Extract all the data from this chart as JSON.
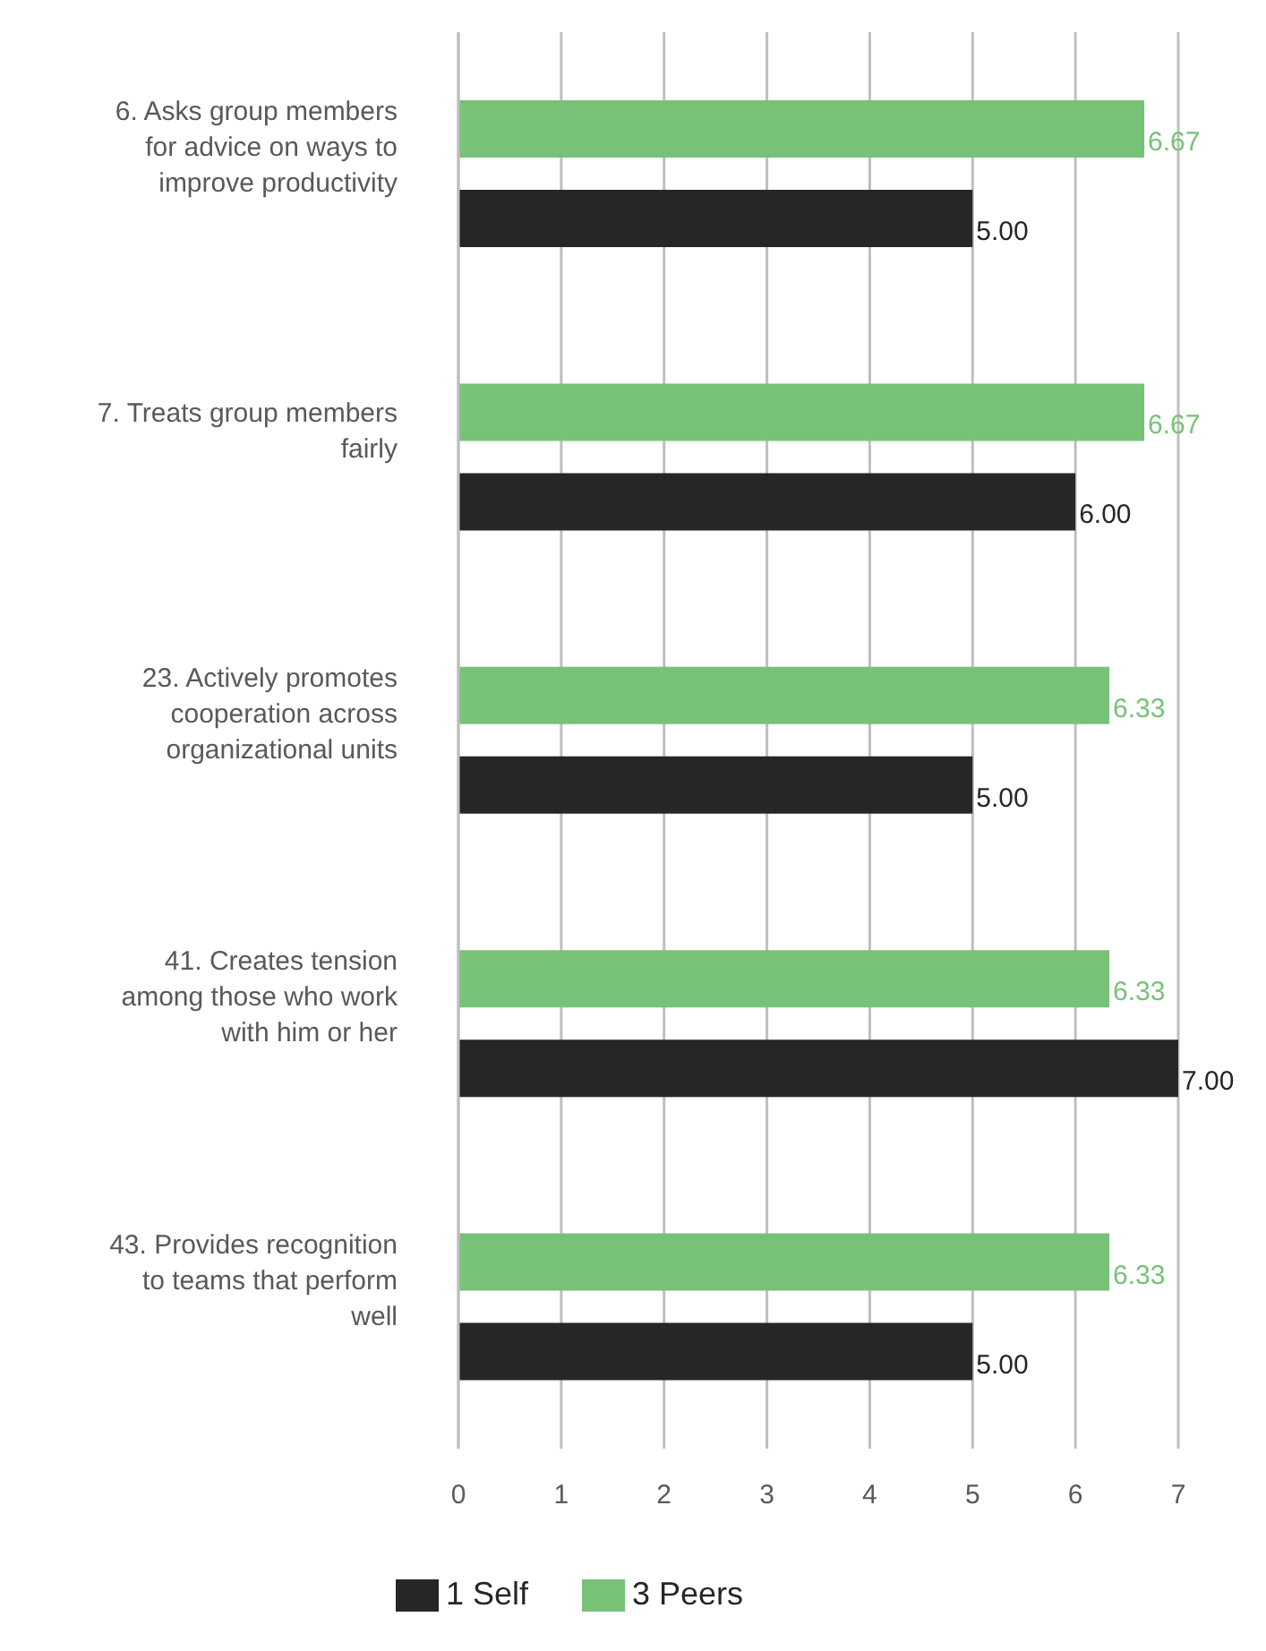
{
  "chart_data": {
    "type": "bar",
    "orientation": "horizontal",
    "categories": [
      "6. Asks group members for advice on ways to improve productivity",
      "7. Treats group members fairly",
      "23. Actively promotes cooperation across organizational units",
      "41. Creates tension among those who work with him or her",
      "43. Provides recognition to teams that perform well"
    ],
    "series": [
      {
        "name": "1 Self",
        "color": "#262626",
        "values": [
          5,
          6,
          5,
          7,
          5
        ],
        "value_labels": [
          "5.00",
          "6.00",
          "5.00",
          "7.00",
          "5.00"
        ]
      },
      {
        "name": "3 Peers",
        "color": "#77c277",
        "values": [
          6.67,
          6.67,
          6.33,
          6.33,
          6.33
        ],
        "value_labels": [
          "6.67",
          "6.67",
          "6.33",
          "6.33",
          "6.33"
        ]
      }
    ],
    "xlim": [
      0,
      7
    ],
    "xticks": [
      0,
      1,
      2,
      3,
      4,
      5,
      6,
      7
    ],
    "grid": "x",
    "legend": "bottom"
  }
}
